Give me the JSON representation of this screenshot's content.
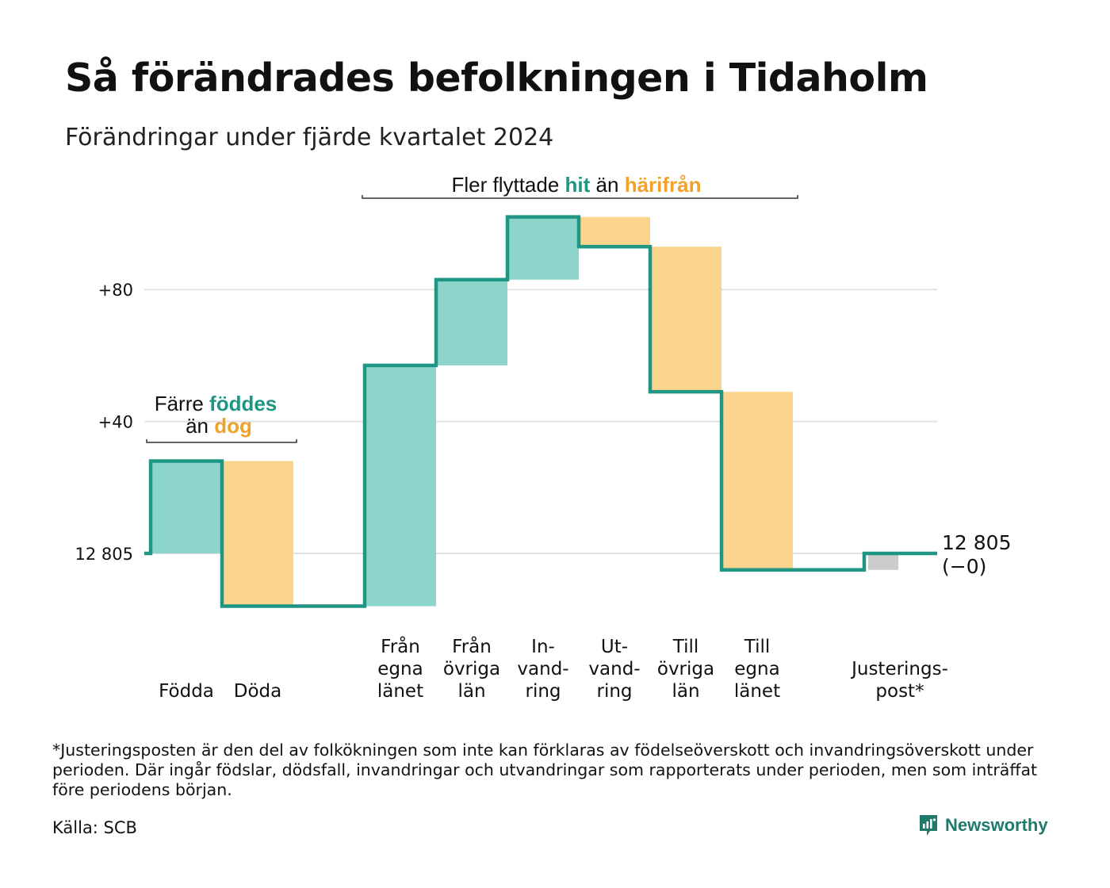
{
  "title": "Så förändrades befolkningen i Tidaholm",
  "subtitle": "Förändringar under fjärde kvartalet 2024",
  "colors": {
    "increase": "#8dd5cb",
    "decrease": "#fbd58e",
    "adjustment": "#cccccc",
    "line": "#1f9683",
    "teal_text": "#1f9683",
    "orange_text": "#f0a22a",
    "grid": "#e2e2e2"
  },
  "annotations": {
    "births_deaths": {
      "line1_prefix": "Färre ",
      "line1_highlight": "föddes",
      "line2_prefix": "än ",
      "line2_highlight": "dog"
    },
    "migration": {
      "prefix": "Fler flyttade ",
      "highlight1": "hit",
      "middle": " än ",
      "highlight2": "härifrån"
    }
  },
  "end_label": {
    "line1": "12 805",
    "line2": "(−0)"
  },
  "chart_data": {
    "type": "waterfall",
    "baseline_value": 12805,
    "y_ticks": [
      {
        "value": 0,
        "label": "12 805"
      },
      {
        "value": 40,
        "label": "+40"
      },
      {
        "value": 80,
        "label": "+80"
      }
    ],
    "ylim": [
      -20,
      110
    ],
    "steps": [
      {
        "label_lines": [
          "Födda"
        ],
        "change": 28,
        "kind": "increase"
      },
      {
        "label_lines": [
          "Döda"
        ],
        "change": -44,
        "kind": "decrease"
      },
      {
        "label_lines": [],
        "change": 0,
        "kind": "gap"
      },
      {
        "label_lines": [
          "Från",
          "egna",
          "länet"
        ],
        "change": 73,
        "kind": "increase"
      },
      {
        "label_lines": [
          "Från",
          "övriga",
          "län"
        ],
        "change": 26,
        "kind": "increase"
      },
      {
        "label_lines": [
          "In-",
          "vand-",
          "ring"
        ],
        "change": 19,
        "kind": "increase"
      },
      {
        "label_lines": [
          "Ut-",
          "vand-",
          "ring"
        ],
        "change": -9,
        "kind": "decrease"
      },
      {
        "label_lines": [
          "Till",
          "övriga",
          "län"
        ],
        "change": -44,
        "kind": "decrease"
      },
      {
        "label_lines": [
          "Till",
          "egna",
          "länet"
        ],
        "change": -54,
        "kind": "decrease"
      },
      {
        "label_lines": [],
        "change": 0,
        "kind": "gap"
      },
      {
        "label_lines": [
          "Justerings-",
          "post*"
        ],
        "change": 5,
        "kind": "adjustment"
      }
    ]
  },
  "footnote": "*Justeringsposten är den del av folkökningen som inte kan förklaras av födelseöverskott och invandringsöverskott under perioden. Där ingår födslar, dödsfall, invandringar och utvandringar som rapporterats under perioden, men som inträffat före periodens början.",
  "source": "Källa: SCB",
  "brand": "Newsworthy"
}
